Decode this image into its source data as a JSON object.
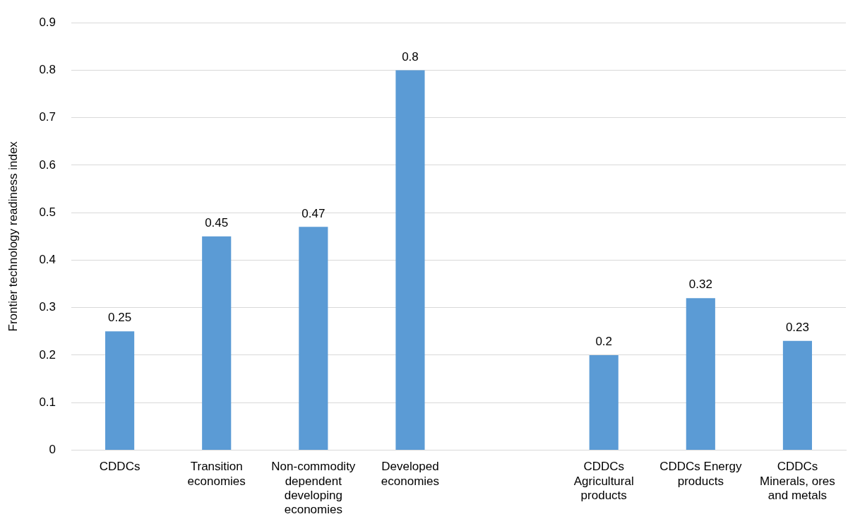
{
  "chart_data": {
    "type": "bar",
    "ylabel": "Frontier technology readiness index",
    "categories": [
      "CDDCs",
      "Transition economies",
      "Non-commodity dependent developing economies",
      "Developed economies",
      null,
      "CDDCs Agricultural products",
      "CDDCs Energy products",
      "CDDCs Minerals, ores and metals"
    ],
    "values": [
      0.25,
      0.45,
      0.47,
      0.8,
      null,
      0.2,
      0.32,
      0.23
    ],
    "color": "#5b9bd5",
    "ylim": [
      0,
      0.9
    ],
    "yticks": [
      0,
      0.1,
      0.2,
      0.3,
      0.4,
      0.5,
      0.6,
      0.7,
      0.8,
      0.9
    ],
    "grid": "y",
    "data_labels": true,
    "legend": false
  }
}
